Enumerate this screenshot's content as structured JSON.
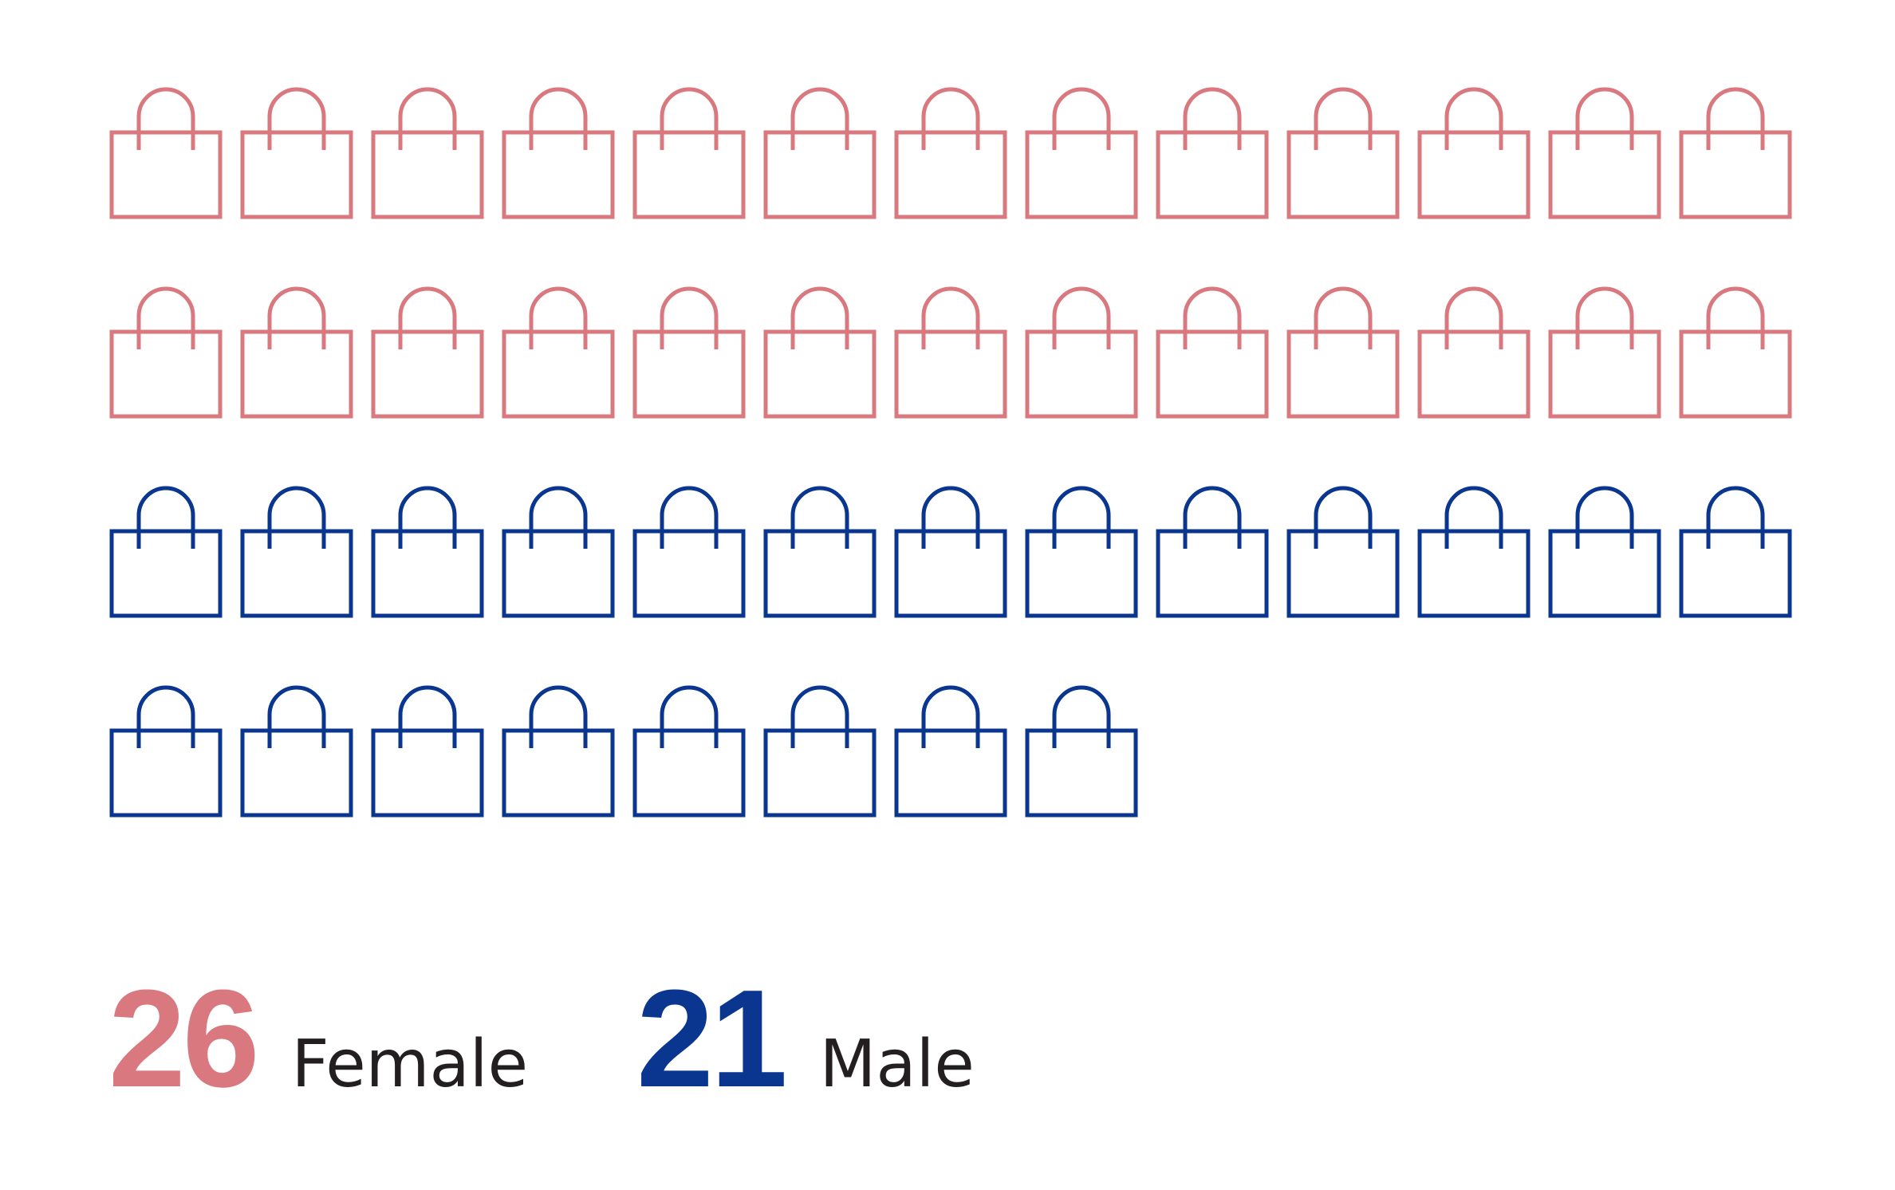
{
  "chart_data": {
    "type": "pictogram",
    "icon": "shopping-bag-icon",
    "icons_per_row": 13,
    "series": [
      {
        "name": "Female",
        "value": 26,
        "color": "#d9787e"
      },
      {
        "name": "Male",
        "value": 21,
        "color": "#0a3690"
      }
    ]
  },
  "legend": {
    "female": {
      "value": "26",
      "label": "Female"
    },
    "male": {
      "value": "21",
      "label": "Male"
    }
  }
}
